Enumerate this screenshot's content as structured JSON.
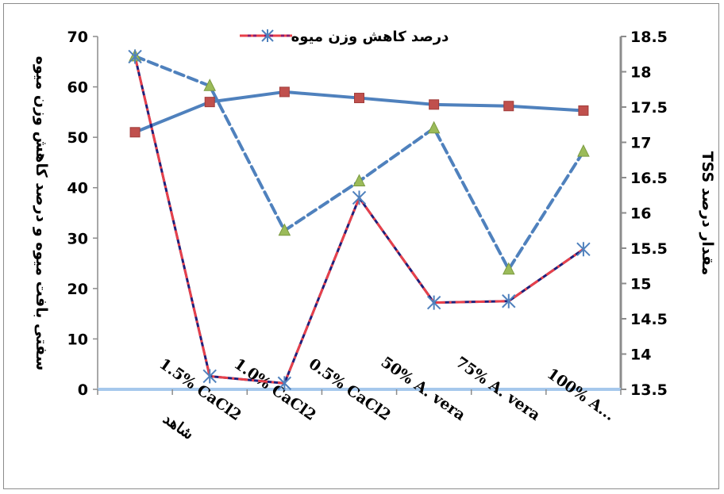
{
  "chart_data": {
    "type": "line",
    "categories": [
      "شاهد",
      "1.5% CaCl2",
      "1.0% CaCl2",
      "0.5% CaCl2",
      "50% A. vera",
      "75% A. vera",
      "100% A..."
    ],
    "left_axis": {
      "label": "سفتی بافت میوه و درصد کاهش وزن میوه",
      "ylim": [
        0,
        70
      ],
      "ticks": [
        0,
        10,
        20,
        30,
        40,
        50,
        60,
        70
      ]
    },
    "right_axis": {
      "label": "مقدار درصد TSS",
      "ylim": [
        13.5,
        18.5
      ],
      "ticks": [
        "13.5",
        "14",
        "14.5",
        "15",
        "15.5",
        "16",
        "16.5",
        "17",
        "17.5",
        "18",
        "18.5"
      ]
    },
    "series": [
      {
        "name": "درصد کاهش وزن میوه",
        "axis": "left",
        "values": [
          66,
          2.6,
          1.2,
          38,
          17.2,
          17.5,
          27.8
        ],
        "color": "#8b1a6b",
        "marker_color": "#4f81bd"
      },
      {
        "axis": "left",
        "values": [
          51,
          57,
          59,
          57.8,
          56.5,
          56.2,
          55.3
        ],
        "color": "#4f81bd",
        "marker_color": "#c0504d"
      },
      {
        "axis": "right",
        "values": [
          18.22,
          17.8,
          15.75,
          16.45,
          17.2,
          15.2,
          16.87
        ],
        "color": "#4f81bd",
        "marker_color": "#9bbb59"
      }
    ],
    "legend": "top-center",
    "grid": false
  }
}
